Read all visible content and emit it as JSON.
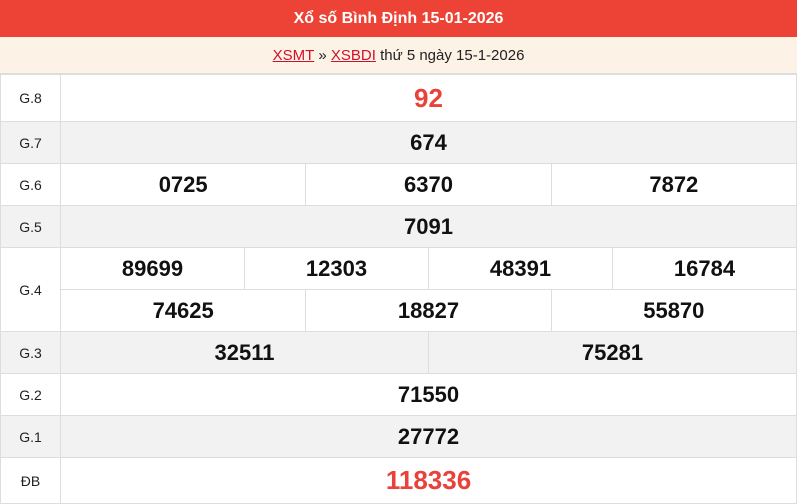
{
  "header": {
    "title": "Xổ số Bình Định 15-01-2026"
  },
  "breadcrumb": {
    "link1": "XSMT",
    "sep": "»",
    "link2": "XSBDI",
    "text": "thứ 5 ngày 15-1-2026"
  },
  "prizes": [
    {
      "label": "G.8",
      "numbers": [
        "92"
      ]
    },
    {
      "label": "G.7",
      "numbers": [
        "674"
      ]
    },
    {
      "label": "G.6",
      "numbers": [
        "0725",
        "6370",
        "7872"
      ]
    },
    {
      "label": "G.5",
      "numbers": [
        "7091"
      ]
    },
    {
      "label": "G.4",
      "numbers": [
        "89699",
        "12303",
        "48391",
        "16784",
        "74625",
        "18827",
        "55870"
      ]
    },
    {
      "label": "G.3",
      "numbers": [
        "32511",
        "75281"
      ]
    },
    {
      "label": "G.2",
      "numbers": [
        "71550"
      ]
    },
    {
      "label": "G.1",
      "numbers": [
        "27772"
      ]
    },
    {
      "label": "ĐB",
      "numbers": [
        "118336"
      ]
    }
  ],
  "colors": {
    "header": "#ec4336",
    "special": "#e8423a",
    "breadcrumb_bg": "#fdf2e6"
  }
}
